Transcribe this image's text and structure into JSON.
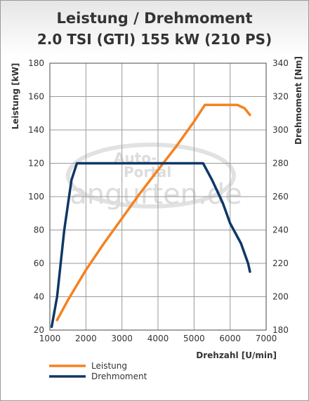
{
  "title": "Leistung / Drehmoment",
  "subtitle": "2.0 TSI (GTI) 155 kW (210 PS)",
  "watermark": [
    "Auto-",
    "Portal",
    "angurten.de"
  ],
  "chart_data": {
    "type": "line",
    "xlabel": "Drehzahl [U/min]",
    "ylabel_left": "Leistung [kW]",
    "ylabel_right": "Drehmoment [Nm]",
    "xlim": [
      1000,
      7000
    ],
    "ylim_left": [
      20,
      180
    ],
    "ylim_right": [
      180,
      340
    ],
    "x_ticks": [
      1000,
      2000,
      3000,
      4000,
      5000,
      6000,
      7000
    ],
    "y_ticks_left": [
      20,
      40,
      60,
      80,
      100,
      120,
      140,
      160,
      180
    ],
    "y_ticks_right": [
      180,
      200,
      220,
      240,
      260,
      280,
      300,
      320,
      340
    ],
    "grid": true,
    "legend_position": "bottom-left",
    "series": [
      {
        "name": "Leistung",
        "axis": "left",
        "color": "#f58220",
        "points": [
          [
            1200,
            26
          ],
          [
            1500,
            38
          ],
          [
            2000,
            56
          ],
          [
            2500,
            72
          ],
          [
            3000,
            87
          ],
          [
            3500,
            102
          ],
          [
            4000,
            116
          ],
          [
            4500,
            130
          ],
          [
            5000,
            145
          ],
          [
            5300,
            155
          ],
          [
            5500,
            155
          ],
          [
            6200,
            155
          ],
          [
            6400,
            153
          ],
          [
            6550,
            149
          ]
        ]
      },
      {
        "name": "Drehmoment",
        "axis": "right",
        "color": "#0e3866",
        "points": [
          [
            1050,
            182
          ],
          [
            1200,
            200
          ],
          [
            1400,
            240
          ],
          [
            1600,
            270
          ],
          [
            1750,
            280
          ],
          [
            2000,
            280
          ],
          [
            3000,
            280
          ],
          [
            4000,
            280
          ],
          [
            5000,
            280
          ],
          [
            5250,
            280
          ],
          [
            5500,
            270
          ],
          [
            5800,
            256
          ],
          [
            6000,
            244
          ],
          [
            6300,
            232
          ],
          [
            6500,
            220
          ],
          [
            6550,
            215
          ]
        ]
      }
    ]
  }
}
